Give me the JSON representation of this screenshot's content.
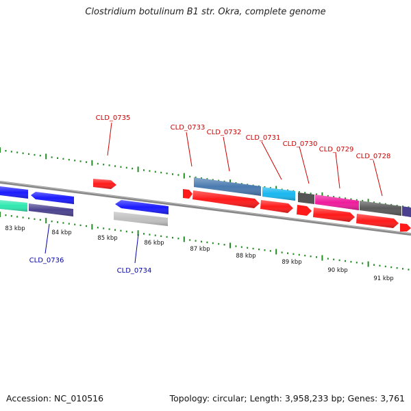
{
  "title": "Clostridium botulinum B1 str. Okra, complete genome",
  "footer": {
    "accession": "Accession: NC_010516",
    "info": "Topology: circular; Length: 3,958,233 bp; Genes: 3,761"
  },
  "colors": {
    "label_top": "#cc0000",
    "label_bottom": "#0000aa",
    "ticks": "#228B22",
    "backbone": "#888888"
  },
  "kbp_labels": [
    "83 kbp",
    "84 kbp",
    "85 kbp",
    "86 kbp",
    "87 kbp",
    "88 kbp",
    "89 kbp",
    "90 kbp",
    "91 kbp"
  ],
  "gene_labels_top": [
    "CLD_0735",
    "CLD_0733",
    "CLD_0732",
    "CLD_0731",
    "CLD_0730",
    "CLD_0729",
    "CLD_0728"
  ],
  "gene_labels_bottom": [
    "CLD_0736",
    "CLD_0734"
  ]
}
